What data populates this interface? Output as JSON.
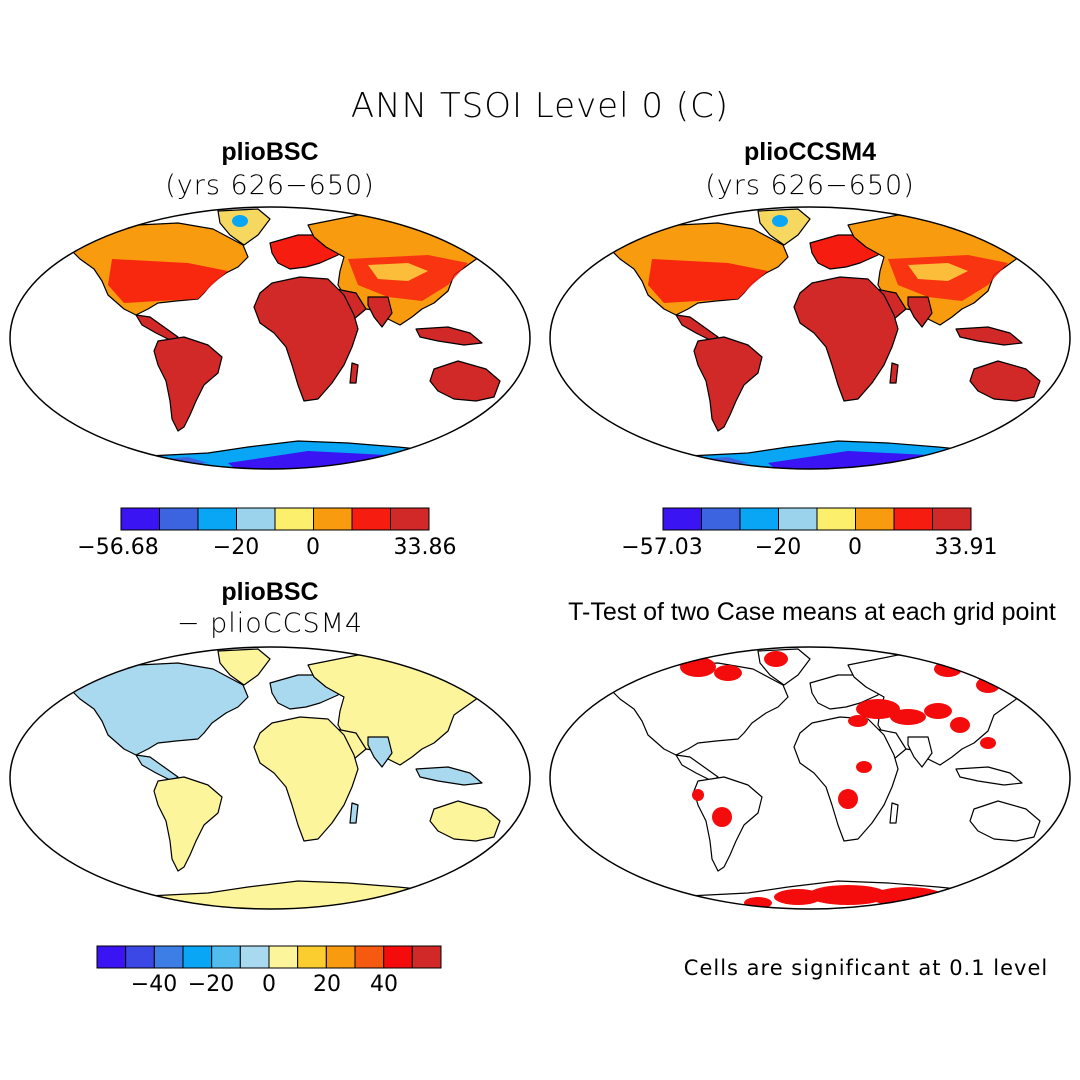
{
  "title": "ANN TSOI Level 0 (C)",
  "panels": {
    "top_left": {
      "case": "plioBSC",
      "years": "(yrs 626−650)"
    },
    "top_right": {
      "case": "plioCCSM4",
      "years": "(yrs 626−650)"
    },
    "bottom_left": {
      "case": "plioBSC",
      "subtitle": "− plioCCSM4"
    },
    "bottom_right": {
      "title": "T-Test of two Case means at each grid point",
      "note": "Cells are significant at 0.1 level"
    }
  },
  "colorbars": {
    "top_left": {
      "colors": [
        "#3a14f2",
        "#3c64e0",
        "#08a6f5",
        "#9bd2ec",
        "#fbef6c",
        "#f99b0f",
        "#f71c10",
        "#d12828"
      ],
      "labels": [
        "−56.68",
        "−20",
        "0",
        "33.86"
      ]
    },
    "top_right": {
      "colors": [
        "#3a14f2",
        "#3c64e0",
        "#08a6f5",
        "#9bd2ec",
        "#fbef6c",
        "#f99b0f",
        "#f71c10",
        "#d12828"
      ],
      "labels": [
        "−57.03",
        "−20",
        "0",
        "33.91"
      ]
    },
    "bottom": {
      "colors": [
        "#3a14f2",
        "#3c48e6",
        "#3c7ee6",
        "#08a6f5",
        "#50bcef",
        "#a8d9ee",
        "#fdf59c",
        "#fccd2e",
        "#f99b0f",
        "#f65a10",
        "#f40c0c",
        "#d12828"
      ],
      "labels": [
        "−40",
        "−20",
        "0",
        "20",
        "40"
      ]
    }
  },
  "map_colors": {
    "warm": "#d12828",
    "hot": "#f71c10",
    "orange": "#f99b0f",
    "ice_deep": "#3a14f2",
    "ice": "#08a6f5",
    "diff_pos": "#fdf59c",
    "diff_neg": "#a8d9ee",
    "significant": "#f40c0c"
  }
}
